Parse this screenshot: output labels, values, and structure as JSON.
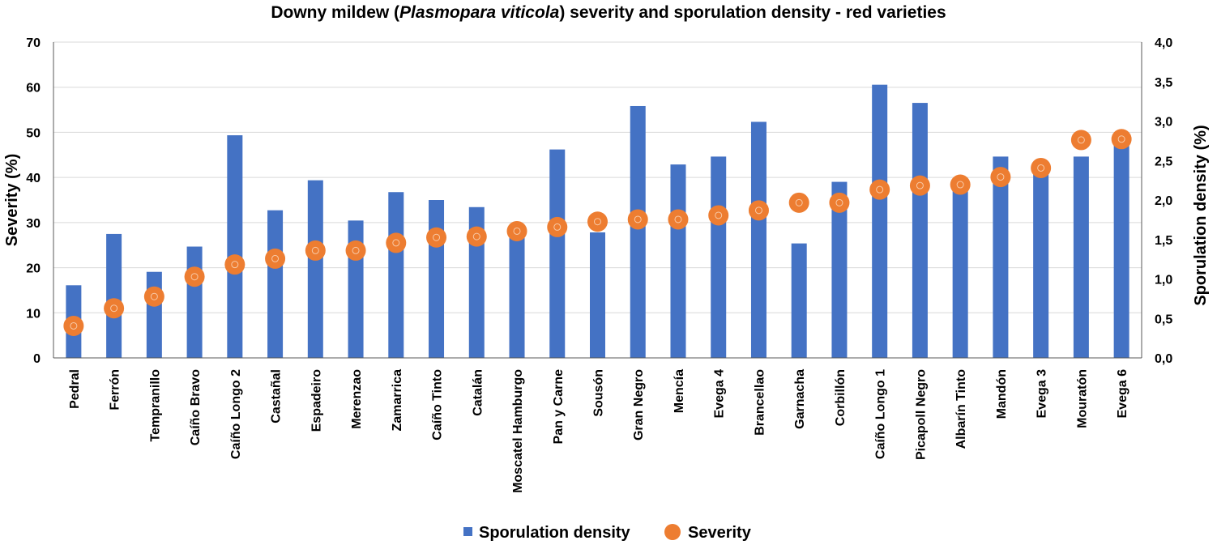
{
  "chart_data": {
    "type": "bar+scatter",
    "title_parts": {
      "prefix": "Downy mildew (",
      "italic": "Plasmopara viticola",
      "suffix": ") severity and sporulation density - red varieties"
    },
    "categories": [
      "Pedral",
      "Ferrón",
      "Tempranillo",
      "Caíño Bravo",
      "Caíño Longo 2",
      "Castañal",
      "Espadeiro",
      "Merenzao",
      "Zamarrica",
      "Caíño Tinto",
      "Catalán",
      "Moscatel Hamburgo",
      "Pan y Carne",
      "Sousón",
      "Gran Negro",
      "Mencía",
      "Evega 4",
      "Brancellao",
      "Garnacha",
      "Corbillón",
      "Caíño Longo 1",
      "Picapoll Negro",
      "Albarín Tinto",
      "Mandón",
      "Evega 3",
      "Mouratón",
      "Evega 6"
    ],
    "series": [
      {
        "name": "Sporulation density",
        "kind": "bar",
        "axis": "right",
        "color": "#4472C4",
        "values": [
          0.92,
          1.57,
          1.09,
          1.41,
          2.82,
          1.87,
          2.25,
          1.74,
          2.1,
          2.0,
          1.91,
          1.57,
          2.64,
          1.59,
          3.19,
          2.45,
          2.55,
          2.99,
          1.45,
          2.23,
          3.46,
          3.23,
          2.16,
          2.55,
          2.37,
          2.55,
          2.79
        ]
      },
      {
        "name": "Severity",
        "kind": "scatter",
        "axis": "left",
        "color": "#ED7D31",
        "values": [
          7.1,
          11.0,
          13.6,
          18.0,
          20.7,
          22.0,
          23.8,
          23.8,
          25.5,
          26.7,
          26.9,
          28.1,
          29.0,
          30.2,
          30.7,
          30.7,
          31.6,
          32.7,
          34.4,
          34.4,
          37.3,
          38.2,
          38.4,
          40.1,
          42.1,
          48.3,
          48.5
        ]
      }
    ],
    "left_axis": {
      "label": "Severity (%)",
      "min": 0,
      "max": 70,
      "ticks": [
        "0",
        "10",
        "20",
        "30",
        "40",
        "50",
        "60",
        "70"
      ]
    },
    "right_axis": {
      "label": "Sporulation density  (%)",
      "min": 0,
      "max": 4,
      "ticks": [
        "0,0",
        "0,5",
        "1,0",
        "1,5",
        "2,0",
        "2,5",
        "3,0",
        "3,5",
        "4,0"
      ]
    },
    "grid": true,
    "legend_position": "bottom",
    "legend": [
      "Sporulation density",
      "Severity"
    ]
  }
}
